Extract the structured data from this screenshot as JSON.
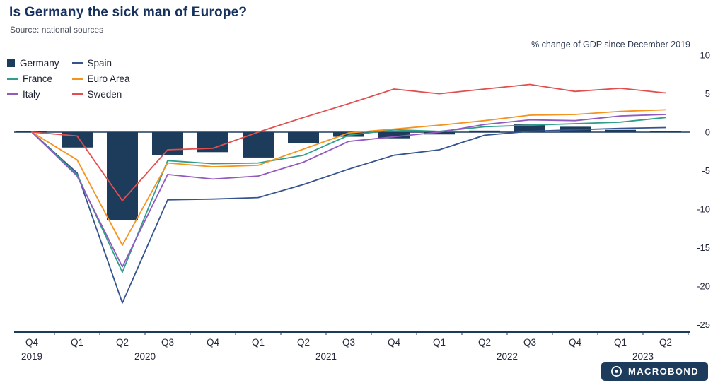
{
  "header": {
    "title": "Is Germany the sick man of Europe?",
    "source": "Source: national sources",
    "axis_note": "% change of GDP since December 2019"
  },
  "branding": {
    "logo_text": "MACROBOND",
    "brand_color": "#1d3c5c"
  },
  "chart_data": {
    "type": "combo",
    "title": "Is Germany the sick man of Europe?",
    "note": "% change of GDP since December 2019",
    "grid": false,
    "legend_position": "top-left",
    "axis_color": "#1d3c5c",
    "tick_text_color": "#23283a",
    "categories": [
      "Q4 2019",
      "Q1 2020",
      "Q2 2020",
      "Q3 2020",
      "Q4 2020",
      "Q1 2021",
      "Q2 2021",
      "Q3 2021",
      "Q4 2021",
      "Q1 2022",
      "Q2 2022",
      "Q3 2022",
      "Q4 2022",
      "Q1 2023",
      "Q2 2023"
    ],
    "x_tick_labels": [
      "Q4",
      "Q1",
      "Q2",
      "Q3",
      "Q4",
      "Q1",
      "Q2",
      "Q3",
      "Q4",
      "Q1",
      "Q2",
      "Q3",
      "Q4",
      "Q1",
      "Q2"
    ],
    "year_labels": [
      {
        "label": "2019",
        "start": 0,
        "end": 0
      },
      {
        "label": "2020",
        "start": 1,
        "end": 4
      },
      {
        "label": "2021",
        "start": 5,
        "end": 8
      },
      {
        "label": "2022",
        "start": 9,
        "end": 12
      },
      {
        "label": "2023",
        "start": 13,
        "end": 14
      }
    ],
    "y_ticks": [
      10,
      5,
      0,
      -5,
      -10,
      -15,
      -20,
      -25
    ],
    "ylim": [
      -26,
      10
    ],
    "series": [
      {
        "name": "Germany",
        "type": "bar",
        "color": "#1d3c5c",
        "values": [
          0.0,
          -2.0,
          -11.4,
          -3.0,
          -2.6,
          -3.3,
          -1.4,
          -0.6,
          -0.8,
          -0.3,
          0.2,
          1.0,
          0.7,
          0.3,
          0.1
        ]
      },
      {
        "name": "Spain",
        "type": "line",
        "color": "#35548f",
        "values": [
          0.0,
          -5.3,
          -22.2,
          -8.8,
          -8.7,
          -8.5,
          -6.8,
          -4.8,
          -3.0,
          -2.3,
          -0.4,
          0.1,
          0.3,
          0.5,
          0.6
        ]
      },
      {
        "name": "France",
        "type": "line",
        "color": "#2f9e8a",
        "values": [
          0.0,
          -5.5,
          -18.2,
          -3.7,
          -4.1,
          -4.0,
          -3.0,
          -0.4,
          0.3,
          0.1,
          0.7,
          0.9,
          1.1,
          1.3,
          1.9
        ]
      },
      {
        "name": "Euro Area",
        "type": "line",
        "color": "#f6921e",
        "values": [
          0.0,
          -3.6,
          -14.7,
          -4.0,
          -4.5,
          -4.3,
          -2.2,
          -0.1,
          0.4,
          0.9,
          1.5,
          2.2,
          2.3,
          2.7,
          2.9
        ]
      },
      {
        "name": "Italy",
        "type": "line",
        "color": "#9259c1",
        "values": [
          0.0,
          -5.7,
          -17.5,
          -5.5,
          -6.1,
          -5.7,
          -3.9,
          -1.2,
          -0.6,
          0.0,
          1.0,
          1.6,
          1.5,
          2.1,
          2.3
        ]
      },
      {
        "name": "Sweden",
        "type": "line",
        "color": "#e04f4e",
        "values": [
          0.0,
          -0.5,
          -8.9,
          -2.3,
          -2.1,
          0.0,
          1.9,
          3.7,
          5.6,
          5.0,
          5.6,
          6.2,
          5.3,
          5.7,
          5.1
        ]
      }
    ],
    "legend_rows": [
      [
        "Germany",
        "Spain"
      ],
      [
        "France",
        "Euro Area"
      ],
      [
        "Italy",
        "Sweden"
      ]
    ]
  }
}
